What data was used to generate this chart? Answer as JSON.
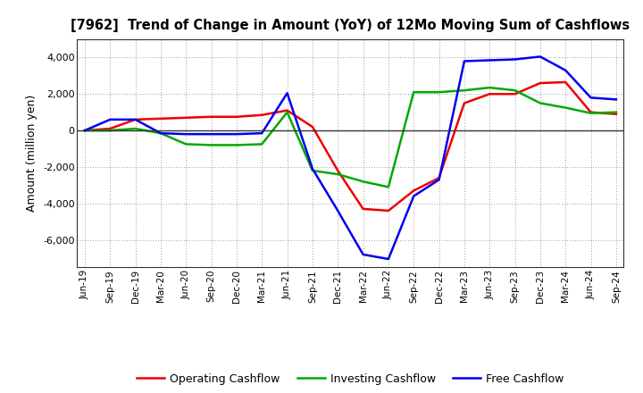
{
  "title": "[7962]  Trend of Change in Amount (YoY) of 12Mo Moving Sum of Cashflows",
  "ylabel": "Amount (million yen)",
  "x_labels": [
    "Jun-19",
    "Sep-19",
    "Dec-19",
    "Mar-20",
    "Jun-20",
    "Sep-20",
    "Dec-20",
    "Mar-21",
    "Jun-21",
    "Sep-21",
    "Dec-21",
    "Mar-22",
    "Jun-22",
    "Sep-22",
    "Dec-22",
    "Mar-23",
    "Jun-23",
    "Sep-23",
    "Dec-23",
    "Mar-24",
    "Jun-24",
    "Sep-24"
  ],
  "operating": [
    0,
    100,
    600,
    650,
    700,
    750,
    750,
    850,
    1100,
    200,
    -2200,
    -4300,
    -4400,
    -3300,
    -2600,
    1500,
    2000,
    2000,
    2600,
    2650,
    1000,
    900
  ],
  "investing": [
    0,
    0,
    100,
    -150,
    -750,
    -800,
    -800,
    -750,
    1000,
    -2200,
    -2400,
    -2800,
    -3100,
    2100,
    2100,
    2200,
    2350,
    2200,
    1500,
    1250,
    950,
    1000
  ],
  "free": [
    0,
    600,
    600,
    -150,
    -200,
    -200,
    -200,
    -150,
    2050,
    -2100,
    -4400,
    -6800,
    -7050,
    -3600,
    -2700,
    3800,
    3850,
    3900,
    4050,
    3300,
    1800,
    1700
  ],
  "operating_color": "#ee0000",
  "investing_color": "#00aa00",
  "free_color": "#0000ee",
  "ylim": [
    -7500,
    5000
  ],
  "yticks": [
    -6000,
    -4000,
    -2000,
    0,
    2000,
    4000
  ],
  "bg_color": "#ffffff",
  "grid_color": "#999999",
  "legend_labels": [
    "Operating Cashflow",
    "Investing Cashflow",
    "Free Cashflow"
  ]
}
